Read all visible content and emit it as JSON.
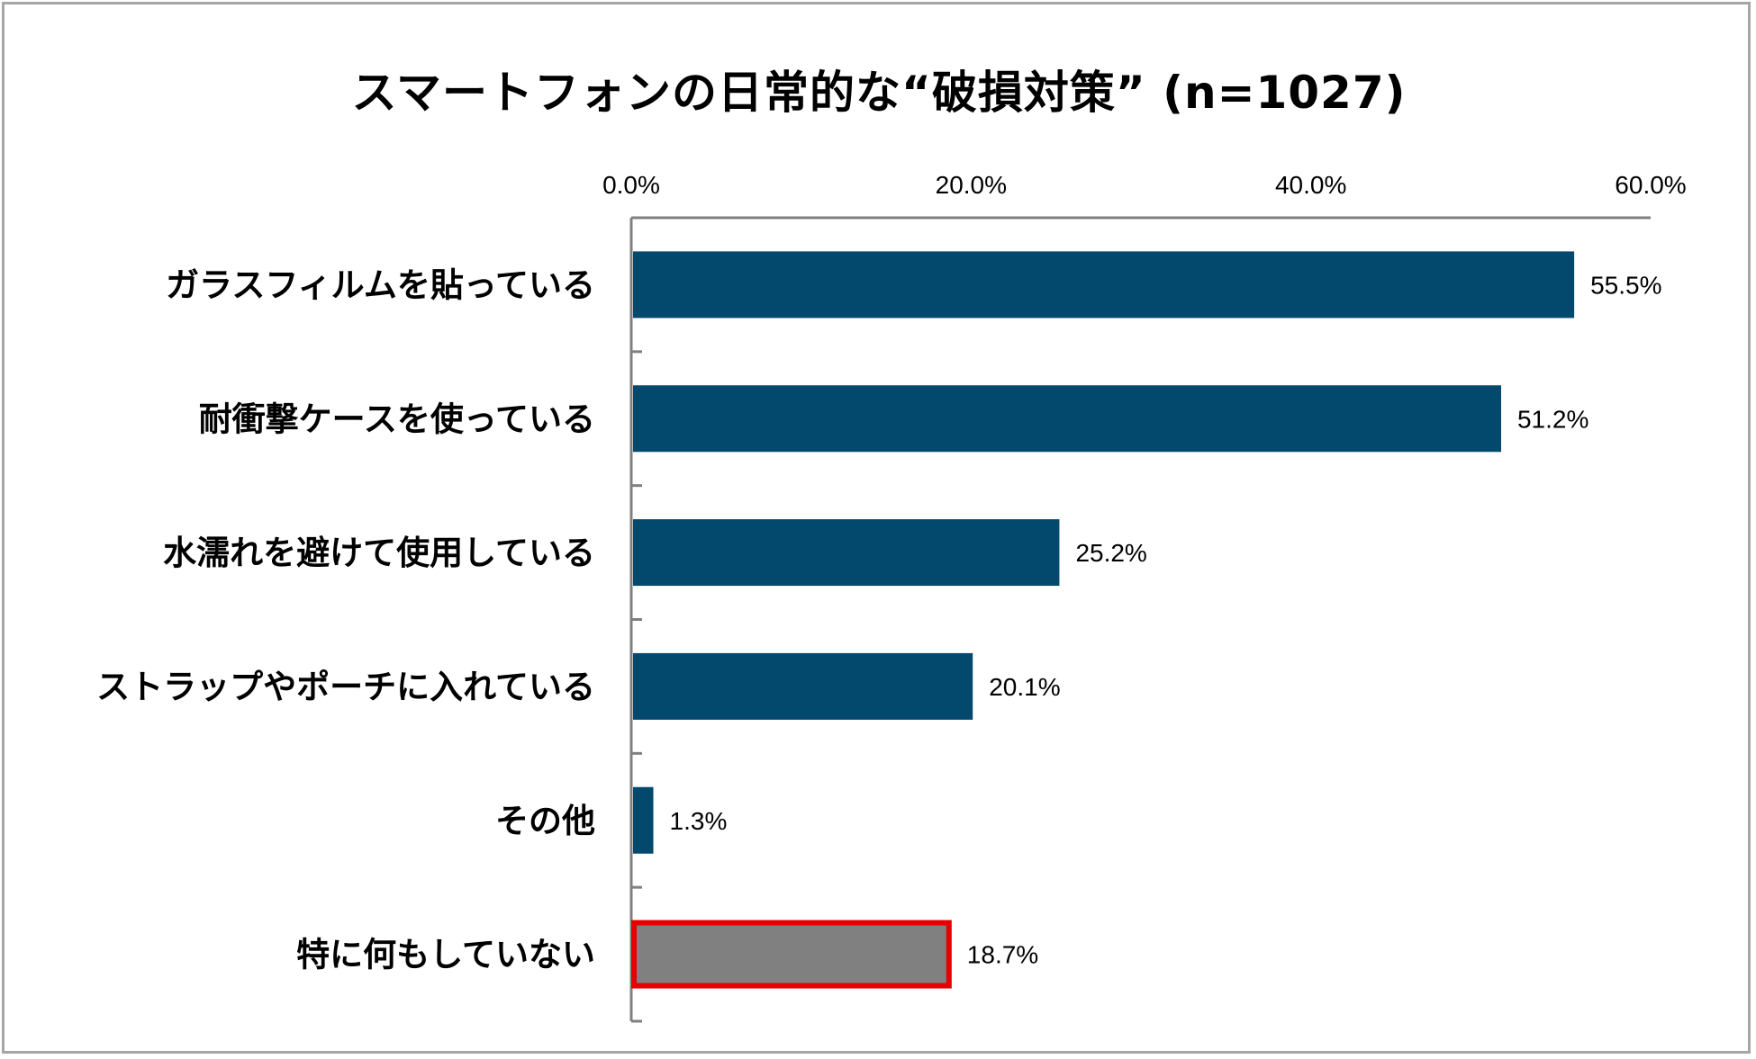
{
  "chart_data": {
    "type": "bar",
    "orientation": "horizontal",
    "title": "スマートフォンの日常的な“破損対策” (n=1027)",
    "categories": [
      "ガラスフィルムを貼っている",
      "耐衝撃ケースを使っている",
      "水濡れを避けて使用している",
      "ストラップやポーチに入れている",
      "その他",
      "特に何もしていない"
    ],
    "values": [
      55.5,
      51.2,
      25.2,
      20.1,
      1.3,
      18.7
    ],
    "data_labels": [
      "55.5%",
      "51.2%",
      "25.2%",
      "20.1%",
      "1.3%",
      "18.7%"
    ],
    "xlim": [
      0,
      60
    ],
    "x_ticks": [
      0,
      20,
      40,
      60
    ],
    "x_tick_labels": [
      "0.0%",
      "20.0%",
      "40.0%",
      "60.0%"
    ],
    "x_axis_position": "top",
    "xlabel": "",
    "ylabel": "",
    "grid": false,
    "legend": "none",
    "colors": {
      "bar": "#03486d",
      "highlight_bar": "#808080",
      "highlight_border": "#e60000",
      "axis": "#808080"
    },
    "highlight_index": 5
  }
}
